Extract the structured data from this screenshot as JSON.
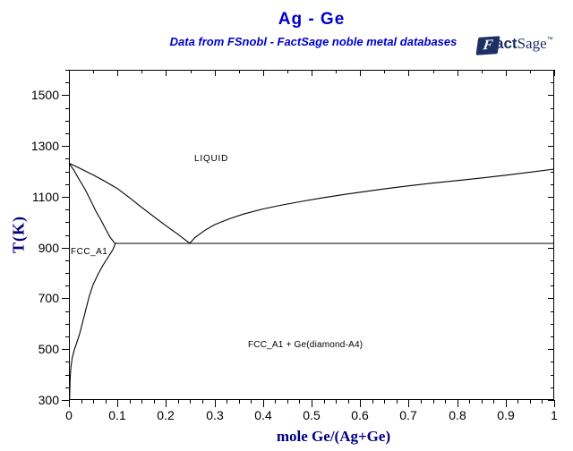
{
  "header": {
    "title": "Ag - Ge",
    "subtitle": "Data from FSnobl - FactSage noble metal databases",
    "colors": {
      "title_blue": "#0000cd",
      "axis_title_navy": "#000080",
      "logo_navy": "#1e2f63",
      "curve_color": "#000000",
      "background": "#ffffff"
    }
  },
  "logo": {
    "fact_f": "F",
    "fact_rest": "act",
    "sage": "Sage",
    "tm": "™"
  },
  "axes": {
    "x": {
      "label": "mole Ge/(Ag+Ge)",
      "min": 0,
      "max": 1,
      "major_step": 0.1,
      "minor_step": 0.025,
      "top_minor_step": 0.05,
      "major_tick_labels": [
        "0",
        "0.1",
        "0.2",
        "0.3",
        "0.4",
        "0.5",
        "0.6",
        "0.7",
        "0.8",
        "0.9",
        "1"
      ]
    },
    "y": {
      "label": "T(K)",
      "min": 300,
      "max": 1600,
      "major_start": 300,
      "major_step": 200,
      "minor_step": 50,
      "major_tick_labels": [
        "300",
        "500",
        "700",
        "900",
        "1100",
        "1300",
        "1500"
      ]
    }
  },
  "plot_labels": {
    "liquid": "LIQUID",
    "fcc": "FCC_A1",
    "two_phase": "FCC_A1 + Ge(diamond-A4)"
  },
  "chart_data": {
    "type": "line",
    "title": "Ag - Ge",
    "subtitle": "Data from FSnobl - FactSage noble metal databases",
    "xlabel": "mole Ge/(Ag+Ge)",
    "ylabel": "T(K)",
    "xlim": [
      0,
      1
    ],
    "ylim": [
      300,
      1600
    ],
    "grid": false,
    "legend": "none",
    "special_points": {
      "Ag_melting_K": 1233,
      "Ge_melting_K": 1209,
      "eutectic": {
        "x": 0.249,
        "T": 917
      },
      "max_Ge_solubility_in_fcc": {
        "x": 0.096,
        "T": 917
      }
    },
    "annotations": [
      {
        "text": "LIQUID",
        "x": 0.29,
        "T": 1240
      },
      {
        "text": "FCC_A1",
        "x": 0.008,
        "T": 880
      },
      {
        "text": "FCC_A1 + Ge(diamond-A4)",
        "x": 0.37,
        "T": 510
      }
    ],
    "series": [
      {
        "name": "liquidus_left",
        "points": [
          [
            0,
            1233
          ],
          [
            0.025,
            1210
          ],
          [
            0.05,
            1186
          ],
          [
            0.075,
            1160
          ],
          [
            0.1,
            1132
          ],
          [
            0.125,
            1096
          ],
          [
            0.15,
            1058
          ],
          [
            0.175,
            1022
          ],
          [
            0.2,
            986
          ],
          [
            0.225,
            952
          ],
          [
            0.249,
            917
          ]
        ]
      },
      {
        "name": "liquidus_right",
        "points": [
          [
            0.249,
            917
          ],
          [
            0.26,
            940
          ],
          [
            0.28,
            968
          ],
          [
            0.3,
            990
          ],
          [
            0.33,
            1013
          ],
          [
            0.36,
            1032
          ],
          [
            0.4,
            1052
          ],
          [
            0.44,
            1068
          ],
          [
            0.48,
            1082
          ],
          [
            0.52,
            1095
          ],
          [
            0.56,
            1107
          ],
          [
            0.6,
            1118
          ],
          [
            0.65,
            1131
          ],
          [
            0.7,
            1143
          ],
          [
            0.75,
            1154
          ],
          [
            0.8,
            1164
          ],
          [
            0.85,
            1174
          ],
          [
            0.9,
            1185
          ],
          [
            0.95,
            1197
          ],
          [
            1,
            1209
          ]
        ]
      },
      {
        "name": "solidus",
        "points": [
          [
            0,
            1233
          ],
          [
            0.01,
            1205
          ],
          [
            0.02,
            1172
          ],
          [
            0.033,
            1130
          ],
          [
            0.045,
            1085
          ],
          [
            0.055,
            1045
          ],
          [
            0.065,
            1012
          ],
          [
            0.075,
            975
          ],
          [
            0.085,
            940
          ],
          [
            0.092,
            923
          ],
          [
            0.096,
            917
          ]
        ]
      },
      {
        "name": "fcc_solvus",
        "points": [
          [
            0.096,
            917
          ],
          [
            0.09,
            890
          ],
          [
            0.08,
            860
          ],
          [
            0.07,
            830
          ],
          [
            0.06,
            795
          ],
          [
            0.05,
            755
          ],
          [
            0.042,
            710
          ],
          [
            0.034,
            650
          ],
          [
            0.028,
            605
          ],
          [
            0.022,
            560
          ],
          [
            0.016,
            525
          ],
          [
            0.011,
            498
          ],
          [
            0.007,
            468
          ],
          [
            0.0045,
            435
          ],
          [
            0.003,
            400
          ],
          [
            0.002,
            360
          ],
          [
            0.0013,
            300
          ]
        ]
      },
      {
        "name": "eutectic_isotherm",
        "points": [
          [
            0.096,
            917
          ],
          [
            1,
            917
          ]
        ]
      }
    ]
  }
}
